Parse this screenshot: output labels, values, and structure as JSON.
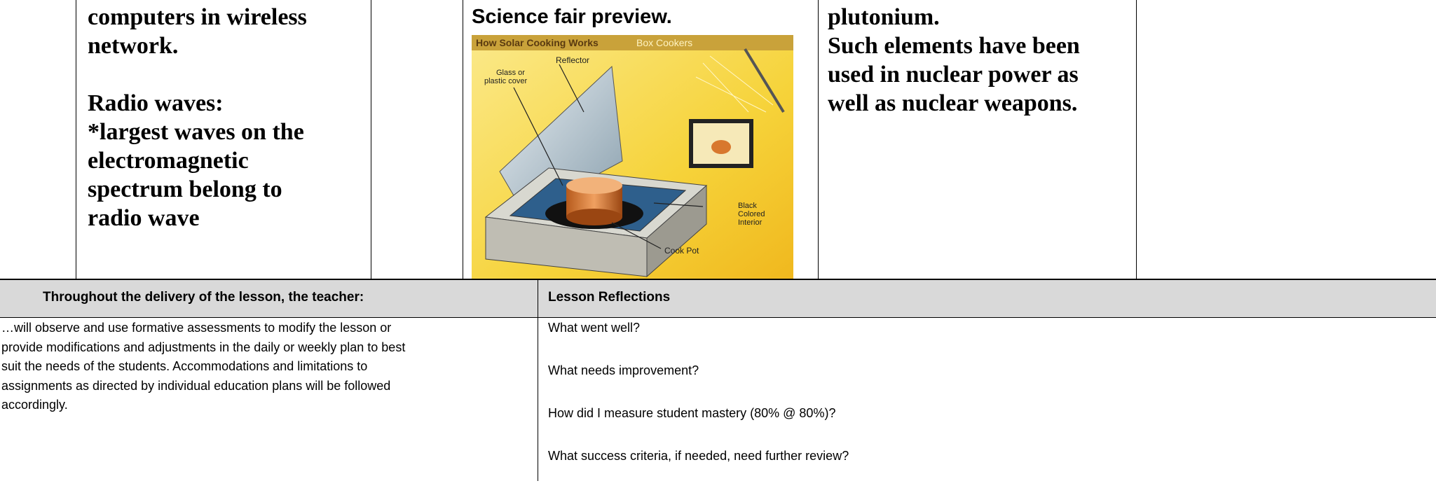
{
  "top_row": {
    "science_notes": [
      [
        "computers in wireless",
        "network."
      ],
      [
        "Radio waves:",
        "*largest waves on the",
        "electromagnetic",
        "spectrum belong to",
        "radio wave"
      ]
    ],
    "preview_title": "Science fair preview.",
    "figure": {
      "title": "How Solar Cooking Works",
      "subtitle": "Box Cookers",
      "labels": [
        "Reflector",
        "Glass or",
        "plastic cover",
        "Black",
        "Colored",
        "Interior",
        "Cook Pot"
      ]
    },
    "element_notes": [
      "plutonium.",
      "Such elements have been",
      "used in nuclear power as",
      "well as nuclear weapons."
    ]
  },
  "bottom_table": {
    "headers": [
      "Throughout the delivery of the lesson, the teacher:",
      "Lesson Reflections"
    ],
    "teacher_text": [
      "…will observe and use formative assessments to modify the lesson or",
      "provide modifications and adjustments in the daily or weekly plan to best",
      "suit the needs of the students.  Accommodations and limitations to",
      "assignments as directed by individual education plans will be followed",
      "accordingly."
    ],
    "reflections": [
      "What went well?",
      "What needs improvement?",
      "How did I measure student mastery (80% @ 80%)?",
      "What success criteria, if needed, need further review?"
    ]
  }
}
